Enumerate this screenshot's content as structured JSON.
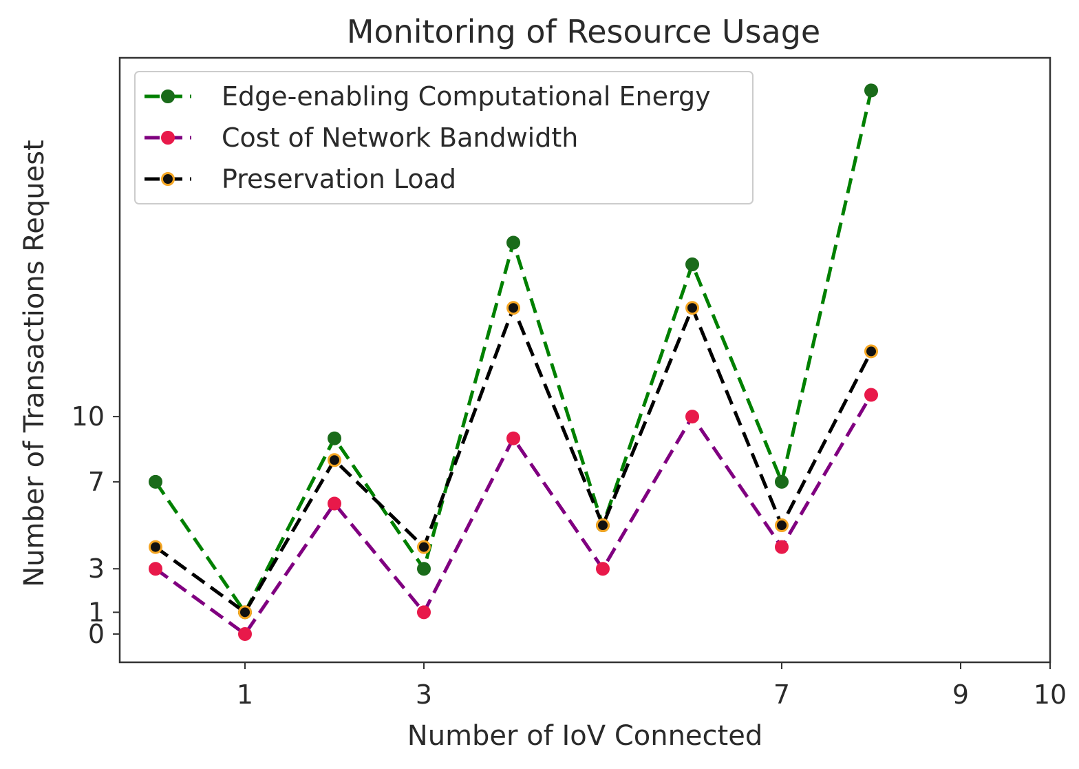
{
  "chart_data": {
    "type": "line",
    "title": "Monitoring of Resource Usage",
    "xlabel": "Number of IoV Connected",
    "ylabel": "Number of Transactions Request",
    "xlim": [
      -0.4,
      10
    ],
    "ylim": [
      -1.3,
      26.5
    ],
    "x": [
      0,
      1,
      2,
      3,
      4,
      5,
      6,
      7,
      8
    ],
    "xticks": [
      1,
      3,
      7,
      9,
      10
    ],
    "yticks": [
      0,
      1,
      3,
      7,
      10
    ],
    "legend_position": "top-left",
    "grid": false,
    "series": [
      {
        "name": "Edge-enabling Computational Energy",
        "values": [
          7,
          1,
          9,
          3,
          18,
          5,
          17,
          7,
          25
        ],
        "line_color": "#008000",
        "marker_fill": "#1a6b1a",
        "marker_edge": "#1a6b1a",
        "line_style": "dashed"
      },
      {
        "name": "Cost of Network Bandwidth",
        "values": [
          3,
          0,
          6,
          1,
          9,
          3,
          10,
          4,
          11
        ],
        "line_color": "#800080",
        "marker_fill": "#e8194a",
        "marker_edge": "#e8194a",
        "line_style": "dashed"
      },
      {
        "name": "Preservation Load",
        "values": [
          4,
          1,
          8,
          4,
          15,
          5,
          15,
          5,
          13
        ],
        "line_color": "#000000",
        "marker_fill": "#111111",
        "marker_edge": "#f5a623",
        "line_style": "dashed"
      }
    ]
  }
}
